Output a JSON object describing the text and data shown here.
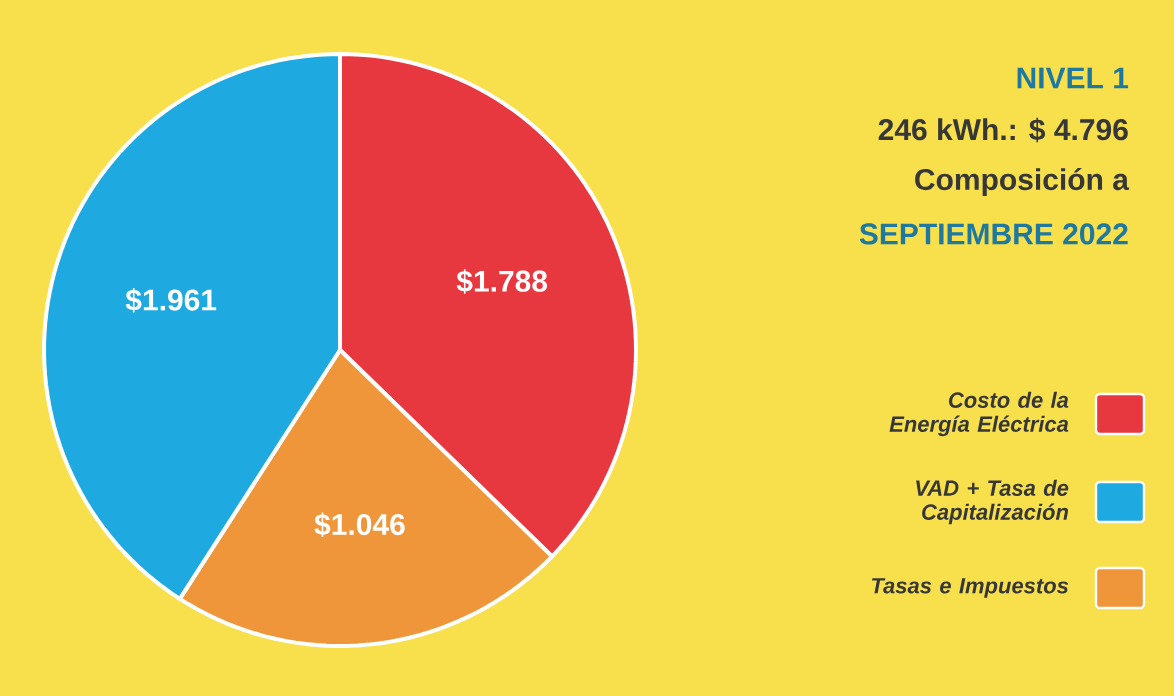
{
  "chart_data": {
    "type": "pie",
    "title": "NIVEL 1",
    "subtitle": "246 kWh.: $ 4.796",
    "annotations": [
      "Composición a",
      "SEPTIEMBRE 2022"
    ],
    "categories": [
      "Costo de la Energía Eléctrica",
      "Tasas e Impuestos",
      "VAD + Tasa de Capitalización"
    ],
    "values": [
      1788,
      1046,
      1961
    ],
    "value_labels": [
      "$1.788",
      "$1.046",
      "$1.961"
    ],
    "colors": [
      "#e8383f",
      "#f0963a",
      "#1fa9e1"
    ],
    "legend": "right"
  }
}
